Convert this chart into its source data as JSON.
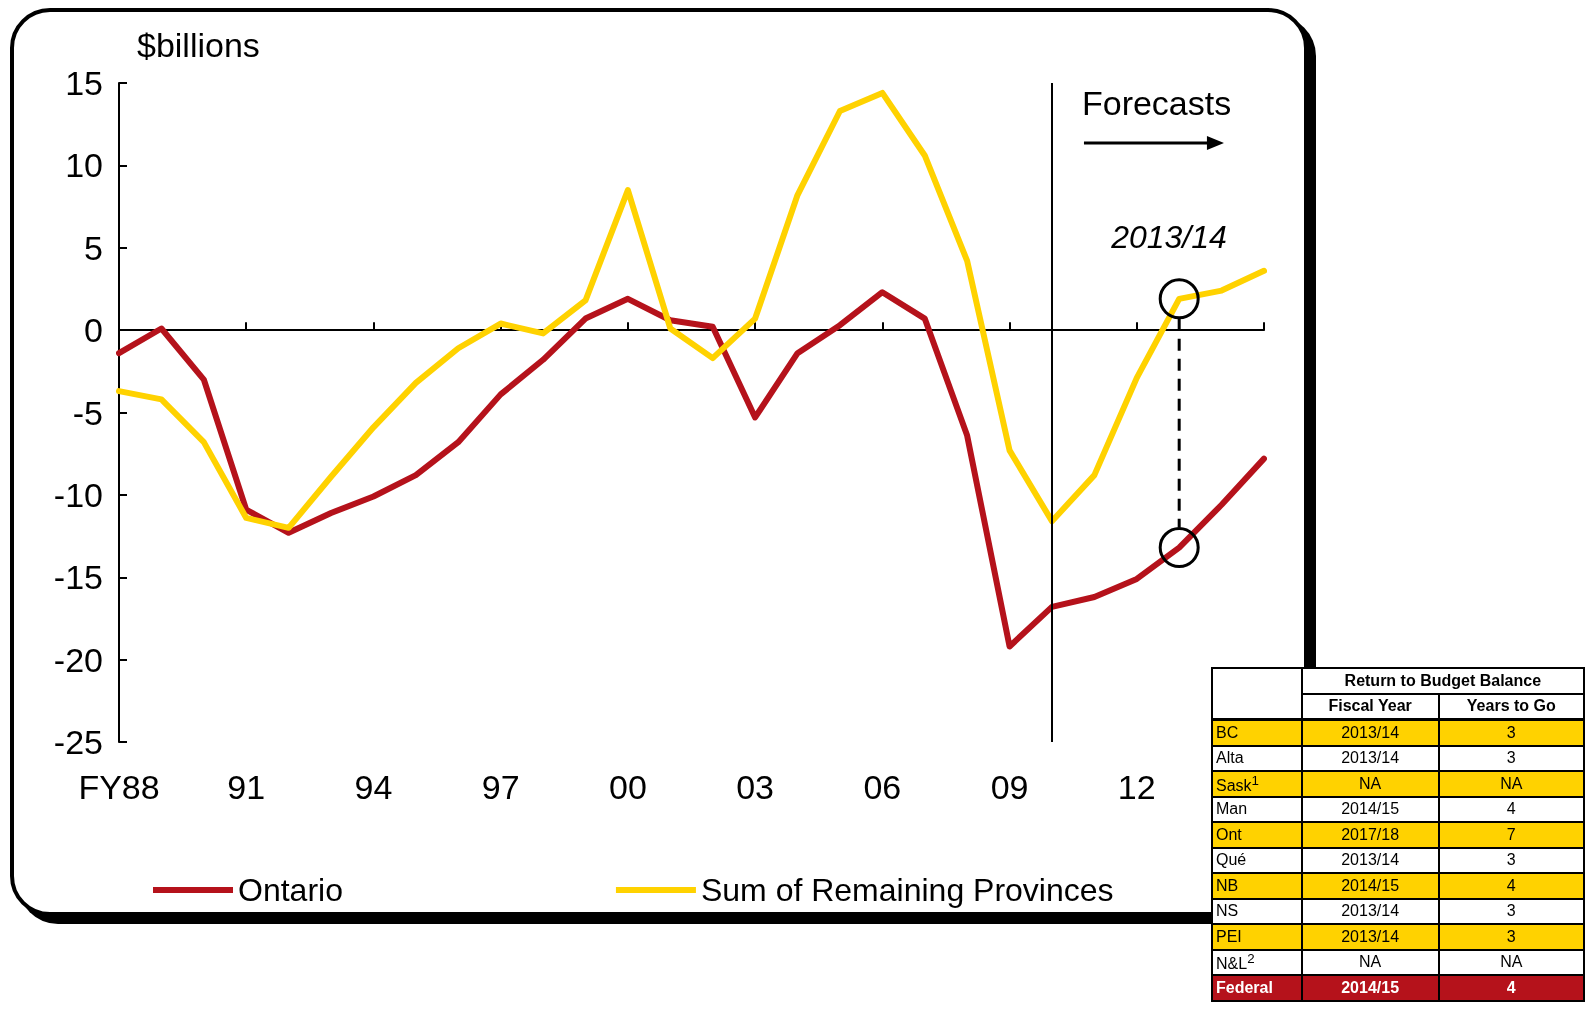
{
  "chart_data": [
    {
      "type": "line",
      "ylabel": "$billions",
      "x": [
        1988,
        1989,
        1990,
        1991,
        1992,
        1993,
        1994,
        1995,
        1996,
        1997,
        1998,
        1999,
        2000,
        2001,
        2002,
        2003,
        2004,
        2005,
        2006,
        2007,
        2008,
        2009,
        2010,
        2011,
        2012,
        2013,
        2014,
        2015
      ],
      "series": [
        {
          "name": "Ontario",
          "color": "#b5121b",
          "values": [
            -1.4,
            0.1,
            -3,
            -10.9,
            -12.3,
            -11.1,
            -10.1,
            -8.8,
            -6.8,
            -3.9,
            -1.8,
            0.7,
            1.9,
            0.6,
            0.2,
            -5.3,
            -1.4,
            0.3,
            2.3,
            0.7,
            -6.4,
            -19.2,
            -16.8,
            -16.2,
            -15.1,
            -13.2,
            -10.6,
            -7.8
          ]
        },
        {
          "name": "Sum of Remaining Provinces",
          "color": "#ffd200",
          "values": [
            -3.7,
            -4.2,
            -6.8,
            -11.4,
            -12,
            -8.9,
            -5.9,
            -3.2,
            -1.1,
            0.4,
            -0.2,
            1.8,
            8.5,
            0.1,
            -1.7,
            0.7,
            8.2,
            13.3,
            14.4,
            10.6,
            4.2,
            -7.3,
            -11.6,
            -8.8,
            -2.9,
            1.9,
            2.4,
            3.6
          ]
        }
      ],
      "xlim": [
        1988,
        2015
      ],
      "xticks": [
        {
          "value": 1988,
          "label": "FY88"
        },
        {
          "value": 1991,
          "label": "91"
        },
        {
          "value": 1994,
          "label": "94"
        },
        {
          "value": 1997,
          "label": "97"
        },
        {
          "value": 2000,
          "label": "00"
        },
        {
          "value": 2003,
          "label": "03"
        },
        {
          "value": 2006,
          "label": "06"
        },
        {
          "value": 2009,
          "label": "09"
        },
        {
          "value": 2012,
          "label": "12"
        },
        {
          "value": 2015,
          "label": null
        }
      ],
      "ylim": [
        -25,
        15
      ],
      "yticks": [
        -25,
        -20,
        -15,
        -10,
        -5,
        0,
        5,
        10,
        15
      ],
      "ref_lines": [
        {
          "axis": "x",
          "value": 2010,
          "color": "#000000"
        }
      ],
      "annotations": [
        "Forecasts",
        {
          "text": "2013/14",
          "x": 2013,
          "y": 1.9
        }
      ],
      "legend": "bottom",
      "marker": "none",
      "line_style": "solid"
    },
    {
      "type": "other",
      "title": "Return to Budget Balance",
      "categories": [
        "Fiscal Year",
        "Years to Go"
      ],
      "y_categories": [
        "BC",
        "Alta",
        "Sask$^{1}$",
        "Man",
        "Ont",
        "Qué",
        "NB",
        "NS",
        "PEI",
        "N&L$^{2}$",
        "Federal"
      ],
      "cell_labels": [
        [
          "2013/14",
          "3"
        ],
        [
          "2013/14",
          "3"
        ],
        [
          "NA",
          "NA"
        ],
        [
          "2014/15",
          "4"
        ],
        [
          "2017/18",
          "7"
        ],
        [
          "2013/14",
          "3"
        ],
        [
          "2014/15",
          "4"
        ],
        [
          "2013/14",
          "3"
        ],
        [
          "2013/14",
          "3"
        ],
        [
          "NA",
          "NA"
        ],
        [
          "2014/15",
          "4"
        ]
      ],
      "colors": [
        "#ffd200",
        "#ffffff",
        "#ffd200",
        "#ffffff",
        "#ffd200",
        "#ffffff",
        "#ffd200",
        "#ffffff",
        "#ffd200",
        "#ffffff",
        "#b5121b"
      ]
    }
  ]
}
